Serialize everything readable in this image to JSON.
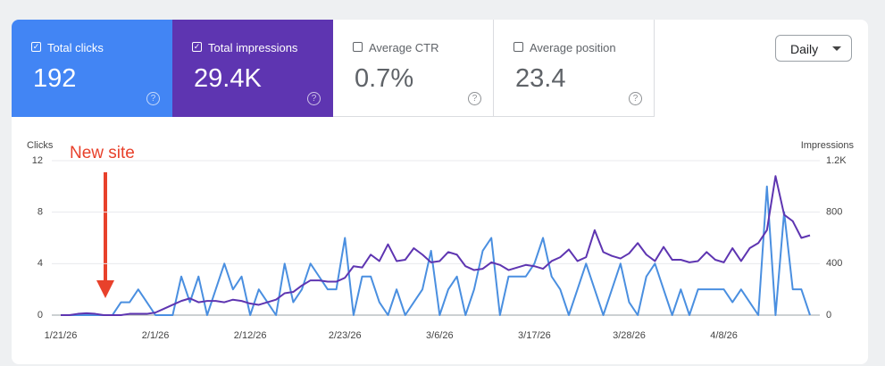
{
  "cards": [
    {
      "label": "Total clicks",
      "value": "192",
      "checked": true,
      "color": "#4285f4"
    },
    {
      "label": "Total impressions",
      "value": "29.4K",
      "checked": true,
      "color": "#5e35b1"
    },
    {
      "label": "Average CTR",
      "value": "0.7%",
      "checked": false,
      "color": "#ffffff"
    },
    {
      "label": "Average position",
      "value": "23.4",
      "checked": false,
      "color": "#ffffff"
    }
  ],
  "dropdown": "Daily",
  "chart_data": {
    "type": "line",
    "annotation": "New site",
    "ylabel": "Clicks",
    "y2label": "Impressions",
    "categories": [
      "1/21/26",
      null,
      null,
      null,
      null,
      null,
      null,
      null,
      null,
      null,
      null,
      "2/1/26",
      null,
      null,
      null,
      null,
      null,
      null,
      null,
      null,
      null,
      null,
      "2/12/26",
      null,
      null,
      null,
      null,
      null,
      null,
      null,
      null,
      null,
      null,
      "2/23/26",
      null,
      null,
      null,
      null,
      null,
      null,
      null,
      null,
      null,
      null,
      "3/6/26",
      null,
      null,
      null,
      null,
      null,
      null,
      null,
      null,
      null,
      null,
      "3/17/26",
      null,
      null,
      null,
      null,
      null,
      null,
      null,
      null,
      null,
      null,
      "3/28/26",
      null,
      null,
      null,
      null,
      null,
      null,
      null,
      null,
      null,
      null,
      "4/8/26",
      null,
      null,
      null,
      null,
      null,
      null,
      null,
      null,
      null,
      null
    ],
    "ylim": [
      0,
      12
    ],
    "yticks": [
      0,
      4,
      8,
      12
    ],
    "y2lim": [
      0,
      1200
    ],
    "y2ticks": [
      0,
      400,
      800,
      {
        "value": 1200,
        "label": "1.2K"
      }
    ],
    "grid": true,
    "series": [
      {
        "name": "Clicks",
        "color": "#4a8fe0",
        "values": [
          0,
          0,
          0,
          0,
          0,
          0,
          0,
          1,
          1,
          2,
          1,
          0,
          0,
          0,
          3,
          1,
          3,
          0,
          2,
          4,
          2,
          3,
          0,
          2,
          1,
          0,
          4,
          1,
          2,
          4,
          3,
          2,
          2,
          6,
          0,
          3,
          3,
          1,
          0,
          2,
          0,
          1,
          2,
          5,
          0,
          2,
          3,
          0,
          2,
          5,
          6,
          0,
          3,
          3,
          3,
          4,
          6,
          3,
          2,
          0,
          2,
          4,
          2,
          0,
          2,
          4,
          1,
          0,
          3,
          4,
          2,
          0,
          2,
          0,
          2,
          2,
          2,
          2,
          1,
          2,
          1,
          0,
          10,
          0,
          8,
          2,
          2,
          0
        ]
      },
      {
        "name": "Impressions",
        "color": "#5e35b1",
        "axis": "y2",
        "values": [
          0,
          0,
          10,
          15,
          10,
          0,
          0,
          0,
          10,
          10,
          10,
          20,
          50,
          80,
          110,
          130,
          100,
          110,
          110,
          100,
          120,
          110,
          90,
          80,
          100,
          120,
          170,
          180,
          230,
          270,
          270,
          260,
          260,
          290,
          380,
          370,
          470,
          420,
          550,
          420,
          430,
          520,
          470,
          410,
          420,
          490,
          470,
          380,
          350,
          360,
          410,
          390,
          350,
          370,
          390,
          380,
          360,
          420,
          450,
          510,
          420,
          450,
          660,
          490,
          460,
          440,
          480,
          560,
          470,
          420,
          530,
          430,
          430,
          410,
          420,
          490,
          430,
          410,
          520,
          420,
          520,
          560,
          660,
          1080,
          780,
          730,
          600,
          620
        ]
      }
    ]
  }
}
